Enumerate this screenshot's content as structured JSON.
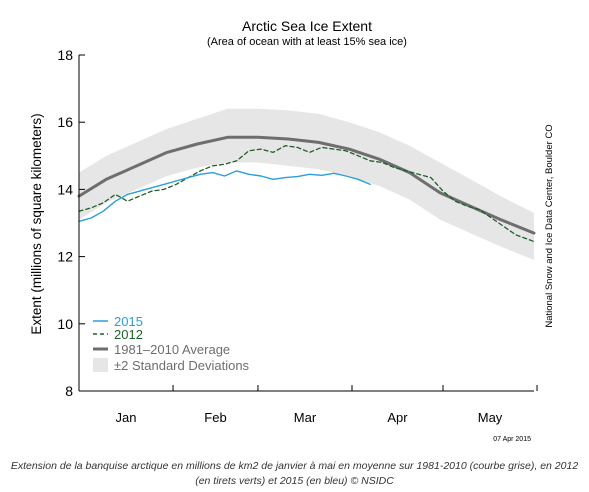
{
  "chart_data": {
    "type": "line",
    "title": "Arctic Sea Ice Extent",
    "subtitle": "(Area of ocean with at least 15% sea ice)",
    "ylabel": "Extent (millions of square kilometers)",
    "xlabel": "",
    "ylim": [
      8,
      18
    ],
    "yticks": [
      "8",
      "10",
      "12",
      "14",
      "16",
      "18"
    ],
    "months": [
      "Jan",
      "Feb",
      "Mar",
      "Apr",
      "May"
    ],
    "xlim_days": [
      1,
      151
    ],
    "credit": "National Snow and Ice Data Center, Boulder CO",
    "date_stamp": "07 Apr 2015",
    "legend": {
      "position": "lower-left",
      "entries": [
        "2015",
        "2012",
        "1981–2010 Average",
        "±2 Standard Deviations"
      ]
    },
    "colors": {
      "2015": "#2a9fd8",
      "2012": "#1f5f2a",
      "average": "#6e6e6e",
      "band": "#e6e6e6"
    },
    "series": [
      {
        "name": "1981–2010 Average",
        "style": "solid",
        "x": [
          1,
          10,
          20,
          30,
          40,
          50,
          60,
          70,
          80,
          90,
          100,
          110,
          120,
          130,
          140,
          151
        ],
        "y": [
          13.8,
          14.3,
          14.7,
          15.1,
          15.35,
          15.55,
          15.55,
          15.5,
          15.4,
          15.2,
          14.9,
          14.5,
          13.9,
          13.5,
          13.1,
          12.7
        ]
      },
      {
        "name": "±2 Standard Deviations",
        "style": "band",
        "x": [
          1,
          10,
          20,
          30,
          40,
          50,
          60,
          70,
          80,
          90,
          100,
          110,
          120,
          130,
          140,
          151
        ],
        "upper": [
          14.5,
          15.0,
          15.4,
          15.8,
          16.1,
          16.4,
          16.4,
          16.35,
          16.25,
          16.0,
          15.7,
          15.3,
          14.8,
          14.3,
          13.8,
          13.3
        ],
        "lower": [
          13.1,
          13.6,
          14.0,
          14.4,
          14.65,
          14.8,
          14.8,
          14.7,
          14.6,
          14.4,
          14.1,
          13.7,
          13.1,
          12.7,
          12.3,
          11.9
        ]
      },
      {
        "name": "2012",
        "style": "dashed",
        "x": [
          1,
          5,
          9,
          13,
          17,
          21,
          25,
          29,
          33,
          37,
          41,
          45,
          49,
          53,
          57,
          61,
          65,
          69,
          73,
          77,
          81,
          85,
          89,
          93,
          97,
          101,
          105,
          109,
          113,
          117,
          121,
          125,
          129,
          133,
          137,
          141,
          145,
          151
        ],
        "y": [
          13.35,
          13.45,
          13.6,
          13.85,
          13.65,
          13.8,
          13.95,
          14.0,
          14.15,
          14.35,
          14.55,
          14.7,
          14.75,
          14.85,
          15.15,
          15.2,
          15.1,
          15.3,
          15.25,
          15.1,
          15.25,
          15.2,
          15.15,
          15.0,
          14.85,
          14.8,
          14.65,
          14.55,
          14.45,
          14.35,
          13.95,
          13.65,
          13.5,
          13.4,
          13.15,
          12.9,
          12.65,
          12.45
        ]
      },
      {
        "name": "2015",
        "style": "solid",
        "x": [
          1,
          5,
          9,
          13,
          17,
          21,
          25,
          29,
          33,
          37,
          41,
          45,
          49,
          53,
          57,
          61,
          65,
          69,
          73,
          77,
          81,
          85,
          89,
          93,
          97
        ],
        "y": [
          13.05,
          13.15,
          13.35,
          13.65,
          13.85,
          13.95,
          14.05,
          14.15,
          14.25,
          14.35,
          14.45,
          14.5,
          14.4,
          14.55,
          14.45,
          14.4,
          14.3,
          14.35,
          14.38,
          14.45,
          14.42,
          14.48,
          14.4,
          14.3,
          14.15
        ]
      }
    ]
  },
  "caption": "Extension de la banquise arctique en millions de km2 de janvier à mai en moyenne sur 1981-2010 (courbe grise), en 2012 (en tirets verts) et 2015 (en bleu) © NSIDC"
}
